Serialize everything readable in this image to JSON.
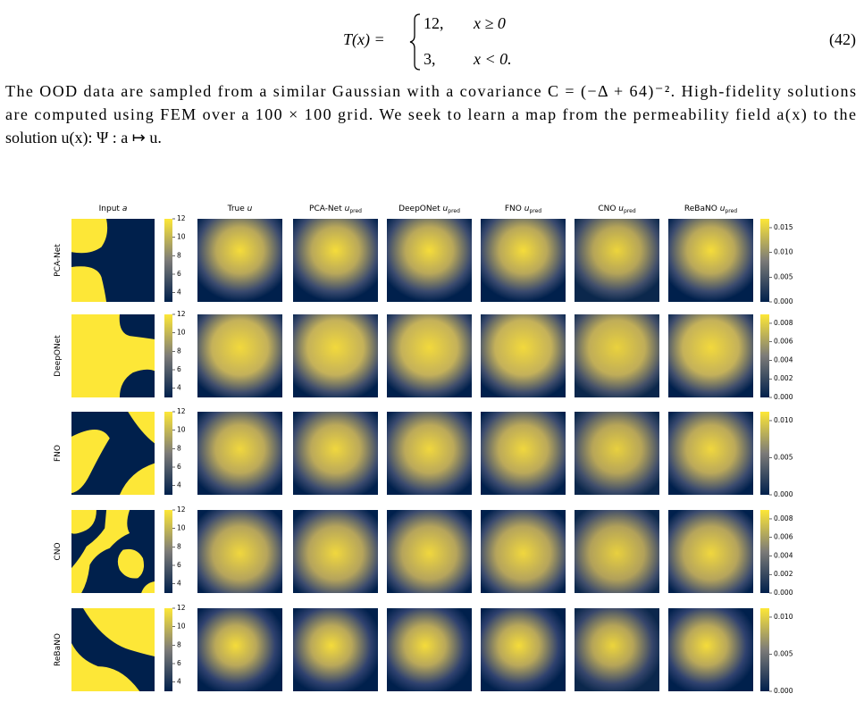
{
  "equation": {
    "lhs": "T(x) =",
    "cases": [
      {
        "value": "12,",
        "condition": "x ≥ 0"
      },
      {
        "value": "3,",
        "condition": "x < 0."
      }
    ],
    "number": "(42)"
  },
  "paragraph": [
    "The OOD data are sampled from a similar Gaussian with a covariance C = (−Δ + 64)⁻². High-fidelity solutions",
    "are computed using FEM over a 100 × 100 grid. We seek to learn a map from the permeability field a(x) to the",
    "solution u(x): Ψ : a ↦ u."
  ],
  "figure": {
    "column_titles": [
      {
        "name": "Input",
        "var": "a"
      },
      {
        "name": "True",
        "var": "u"
      },
      {
        "name": "PCA-Net",
        "var": "u",
        "sub": "pred"
      },
      {
        "name": "DeepONet",
        "var": "u",
        "sub": "pred"
      },
      {
        "name": "FNO",
        "var": "u",
        "sub": "pred"
      },
      {
        "name": "CNO",
        "var": "u",
        "sub": "pred"
      },
      {
        "name": "ReBaNO",
        "var": "u",
        "sub": "pred"
      }
    ],
    "row_labels": [
      "PCA-Net",
      "DeepONet",
      "FNO",
      "CNO",
      "ReBaNO"
    ],
    "input_colorbar_ticks": [
      "12",
      "10",
      "8",
      "6",
      "4"
    ],
    "output_colorbar_ticks": [
      [
        "0.015",
        "0.010",
        "0.005",
        "0.000"
      ],
      [
        "0.008",
        "0.006",
        "0.004",
        "0.002",
        "0.000"
      ],
      [
        "0.010",
        "0.005",
        "0.000"
      ],
      [
        "0.008",
        "0.006",
        "0.004",
        "0.002",
        "0.000"
      ],
      [
        "0.010",
        "0.005",
        "0.000"
      ]
    ]
  }
}
